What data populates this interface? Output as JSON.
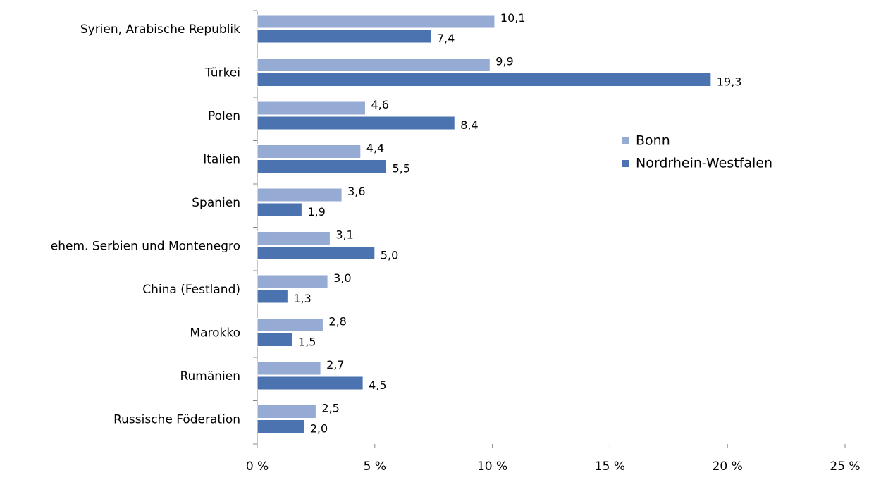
{
  "chart_data": {
    "type": "bar",
    "orientation": "horizontal",
    "categories": [
      "Syrien, Arabische Republik",
      "Türkei",
      "Polen",
      "Italien",
      "Spanien",
      "ehem. Serbien und Montenegro",
      "China (Festland)",
      "Marokko",
      "Rumänien",
      "Russische Föderation"
    ],
    "series": [
      {
        "name": "Bonn",
        "color": "#95abd4",
        "values": [
          10.1,
          9.9,
          4.6,
          4.4,
          3.6,
          3.1,
          3.0,
          2.8,
          2.7,
          2.5
        ],
        "value_labels": [
          "10,1",
          "9,9",
          "4,6",
          "4,4",
          "3,6",
          "3,1",
          "3,0",
          "2,8",
          "2,7",
          "2,5"
        ]
      },
      {
        "name": "Nordrhein-Westfalen",
        "color": "#4a73b0",
        "values": [
          7.4,
          19.3,
          8.4,
          5.5,
          1.9,
          5.0,
          1.3,
          1.5,
          4.5,
          2.0
        ],
        "value_labels": [
          "7,4",
          "19,3",
          "8,4",
          "5,5",
          "1,9",
          "5,0",
          "1,3",
          "1,5",
          "4,5",
          "2,0"
        ]
      }
    ],
    "xlim": [
      0,
      25
    ],
    "xticks": [
      {
        "value": 0,
        "label": "0 %"
      },
      {
        "value": 5,
        "label": "5 %"
      },
      {
        "value": 10,
        "label": "10 %"
      },
      {
        "value": 15,
        "label": "15 %"
      },
      {
        "value": 20,
        "label": "20 %"
      },
      {
        "value": 25,
        "label": "25 %"
      }
    ],
    "legend": "right"
  }
}
